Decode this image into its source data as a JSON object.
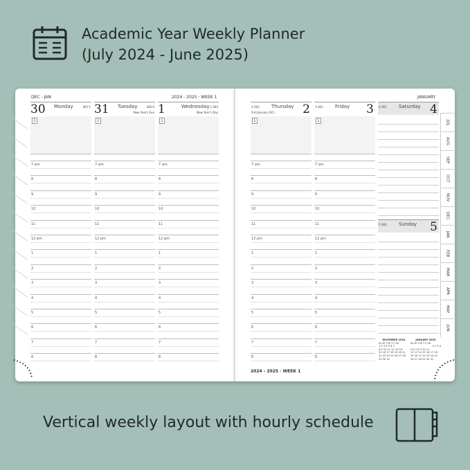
{
  "header": {
    "title_line1": "Academic Year Weekly Planner",
    "title_line2": "(July 2024 - June 2025)",
    "icon": "calendar-icon"
  },
  "caption": {
    "text": "Vertical weekly layout with hourly schedule",
    "icon": "open-planner-icon"
  },
  "left_page": {
    "months": "DEC - JAN",
    "week": "2024 - 2025 · WEEK 1",
    "days": [
      {
        "num": "30",
        "name": "Monday",
        "code": "365-1",
        "note": ""
      },
      {
        "num": "31",
        "name": "Tuesday",
        "code": "366-0",
        "note": "New Year's Eve"
      },
      {
        "num": "1",
        "name": "Wednesday",
        "code": "1-364",
        "note": "New Year's Day"
      }
    ]
  },
  "right_page": {
    "month": "JANUARY",
    "footer": "2024 - 2025 · WEEK 1",
    "days": [
      {
        "num": "2",
        "name": "Thursday",
        "code": "2-363",
        "note": "2nd January (SC)"
      },
      {
        "num": "3",
        "name": "Friday",
        "code": "3-362",
        "note": ""
      }
    ],
    "weekend": [
      {
        "num": "4",
        "name": "Saturday",
        "code": "4-361"
      },
      {
        "num": "5",
        "name": "Sunday",
        "code": "5-360"
      }
    ]
  },
  "hours": [
    "7 am",
    "8",
    "9",
    "10",
    "11",
    "12 pm",
    "1",
    "2",
    "3",
    "4",
    "5",
    "6",
    "7",
    "8"
  ],
  "info_label": "i",
  "tabs": [
    "JUL",
    "AUG",
    "SEP",
    "OCT",
    "NOV",
    "DEC",
    "JAN",
    "FEB",
    "MAR",
    "APR",
    "MAY",
    "JUN"
  ],
  "mini_calendars": [
    {
      "title": "DECEMBER 2024",
      "head": "Su M T W T F Sa",
      "weeks": [
        "1 2 3 4 5 6 7",
        "8 9 10 11 12 13 14",
        "15 16 17 18 19 20 21",
        "22 23 24 25 26 27 28",
        "29 30 31"
      ]
    },
    {
      "title": "JANUARY 2025",
      "head": "Su M T W T F Sa",
      "weeks": [
        "1 2 3 4",
        "5 6 7 8 9 10 11",
        "12 13 14 15 16 17 18",
        "19 20 21 22 23 24 25",
        "26 27 28 29 30 31"
      ]
    }
  ]
}
